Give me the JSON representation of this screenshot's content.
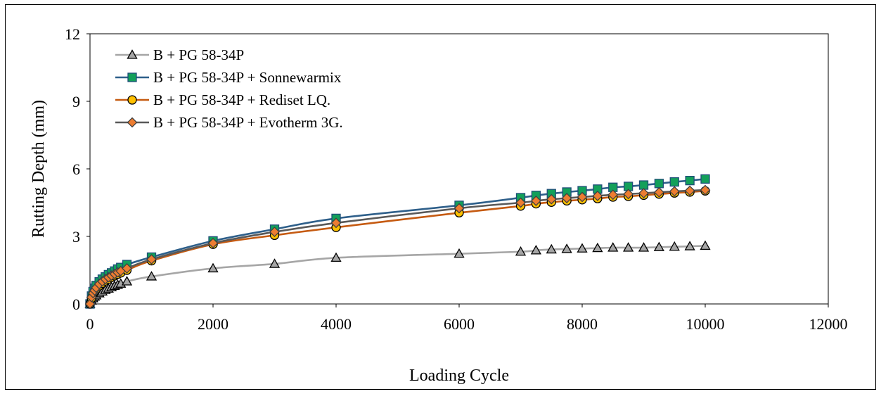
{
  "chart_data": {
    "type": "line",
    "title": "",
    "xlabel": "Loading Cycle",
    "ylabel": "Rutting Depth (mm)",
    "xlim": [
      0,
      12000
    ],
    "ylim": [
      0,
      12
    ],
    "xticks": [
      0,
      2000,
      4000,
      6000,
      8000,
      10000,
      12000
    ],
    "yticks": [
      0,
      3,
      6,
      9,
      12
    ],
    "grid": false,
    "legend_position": "top-left",
    "series": [
      {
        "name": "B + PG 58-34P",
        "marker": "triangle",
        "line_color": "#a6a6a6",
        "marker_fill": "#a6a6a6",
        "marker_stroke": "#000000",
        "x": [
          0,
          25,
          50,
          75,
          100,
          150,
          200,
          250,
          300,
          350,
          400,
          450,
          500,
          600,
          1000,
          2000,
          3000,
          4000,
          6000,
          7000,
          7250,
          7500,
          7750,
          8000,
          8250,
          8500,
          8750,
          9000,
          9250,
          9500,
          9750,
          10000
        ],
        "y": [
          0,
          0.15,
          0.25,
          0.32,
          0.38,
          0.47,
          0.55,
          0.62,
          0.68,
          0.74,
          0.8,
          0.85,
          0.9,
          1.0,
          1.22,
          1.58,
          1.78,
          2.05,
          2.23,
          2.32,
          2.38,
          2.42,
          2.44,
          2.46,
          2.48,
          2.5,
          2.5,
          2.5,
          2.52,
          2.54,
          2.56,
          2.58
        ]
      },
      {
        "name": "B + PG 58-34P + Sonnewarmix",
        "marker": "square",
        "line_color": "#2e5f8a",
        "marker_fill": "#13a05a",
        "marker_stroke": "#1f4e79",
        "x": [
          0,
          25,
          50,
          75,
          100,
          150,
          200,
          250,
          300,
          350,
          400,
          450,
          500,
          600,
          1000,
          2000,
          3000,
          4000,
          6000,
          7000,
          7250,
          7500,
          7750,
          8000,
          8250,
          8500,
          8750,
          9000,
          9250,
          9500,
          9750,
          10000
        ],
        "y": [
          0,
          0.35,
          0.55,
          0.7,
          0.82,
          0.98,
          1.1,
          1.2,
          1.3,
          1.38,
          1.46,
          1.55,
          1.62,
          1.75,
          2.08,
          2.8,
          3.32,
          3.8,
          4.38,
          4.72,
          4.82,
          4.9,
          4.97,
          5.03,
          5.1,
          5.18,
          5.22,
          5.28,
          5.35,
          5.42,
          5.48,
          5.55
        ]
      },
      {
        "name": "B + PG 58-34P + Rediset LQ.",
        "marker": "circle",
        "line_color": "#c55a11",
        "marker_fill": "#ffc000",
        "marker_stroke": "#000000",
        "x": [
          0,
          25,
          50,
          75,
          100,
          150,
          200,
          250,
          300,
          350,
          400,
          450,
          500,
          600,
          1000,
          2000,
          3000,
          4000,
          6000,
          7000,
          7250,
          7500,
          7750,
          8000,
          8250,
          8500,
          8750,
          9000,
          9250,
          9500,
          9750,
          10000
        ],
        "y": [
          0,
          0.25,
          0.42,
          0.55,
          0.65,
          0.8,
          0.92,
          1.02,
          1.1,
          1.18,
          1.25,
          1.32,
          1.38,
          1.5,
          1.92,
          2.65,
          3.05,
          3.4,
          4.05,
          4.35,
          4.45,
          4.52,
          4.58,
          4.63,
          4.68,
          4.75,
          4.78,
          4.83,
          4.88,
          4.93,
          4.97,
          5.02
        ]
      },
      {
        "name": "B + PG 58-34P + Evotherm 3G.",
        "marker": "diamond",
        "line_color": "#595959",
        "marker_fill": "#ed7d31",
        "marker_stroke": "#404040",
        "x": [
          0,
          25,
          50,
          75,
          100,
          150,
          200,
          250,
          300,
          350,
          400,
          450,
          500,
          600,
          1000,
          2000,
          3000,
          4000,
          6000,
          7000,
          7250,
          7500,
          7750,
          8000,
          8250,
          8500,
          8750,
          9000,
          9250,
          9500,
          9750,
          10000
        ],
        "y": [
          0,
          0.3,
          0.48,
          0.6,
          0.72,
          0.88,
          1.0,
          1.1,
          1.18,
          1.26,
          1.33,
          1.4,
          1.46,
          1.58,
          1.98,
          2.7,
          3.2,
          3.6,
          4.25,
          4.5,
          4.58,
          4.65,
          4.7,
          4.75,
          4.8,
          4.85,
          4.88,
          4.92,
          4.96,
          5.0,
          5.03,
          5.06
        ]
      }
    ]
  }
}
